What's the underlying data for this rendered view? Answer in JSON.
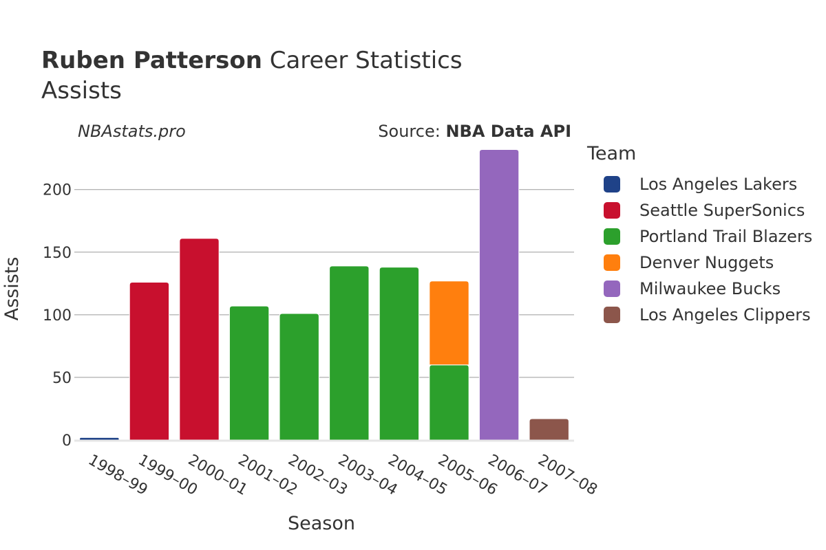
{
  "chart_data": {
    "type": "bar",
    "stacked": true,
    "title_bold": "Ruben Patterson",
    "title_rest": "Career Statistics",
    "subtitle": "Assists",
    "site_label": "NBAstats.pro",
    "source_prefix": "Source:",
    "source_name": "NBA Data API",
    "xlabel": "Season",
    "ylabel": "Assists",
    "ylim": [
      0,
      235
    ],
    "yticks": [
      0,
      50,
      100,
      150,
      200
    ],
    "grid": true,
    "legend_title": "Team",
    "legend_position": "right",
    "categories": [
      "1998–99",
      "1999–00",
      "2000–01",
      "2001–02",
      "2002–03",
      "2003–04",
      "2004–05",
      "2005–06",
      "2006–07",
      "2007–08"
    ],
    "series": [
      {
        "name": "Los Angeles Lakers",
        "color": "#1f4288",
        "values": [
          2,
          0,
          0,
          0,
          0,
          0,
          0,
          0,
          0,
          0
        ]
      },
      {
        "name": "Seattle SuperSonics",
        "color": "#c8102e",
        "values": [
          0,
          126,
          161,
          0,
          0,
          0,
          0,
          0,
          0,
          0
        ]
      },
      {
        "name": "Portland Trail Blazers",
        "color": "#2ca02c",
        "values": [
          0,
          0,
          0,
          107,
          101,
          139,
          138,
          60,
          0,
          0
        ]
      },
      {
        "name": "Denver Nuggets",
        "color": "#ff7f0e",
        "values": [
          0,
          0,
          0,
          0,
          0,
          0,
          0,
          67,
          0,
          0
        ]
      },
      {
        "name": "Milwaukee Bucks",
        "color": "#9467bd",
        "values": [
          0,
          0,
          0,
          0,
          0,
          0,
          0,
          0,
          232,
          0
        ]
      },
      {
        "name": "Los Angeles Clippers",
        "color": "#8c564b",
        "values": [
          0,
          0,
          0,
          0,
          0,
          0,
          0,
          0,
          0,
          17
        ]
      }
    ]
  }
}
